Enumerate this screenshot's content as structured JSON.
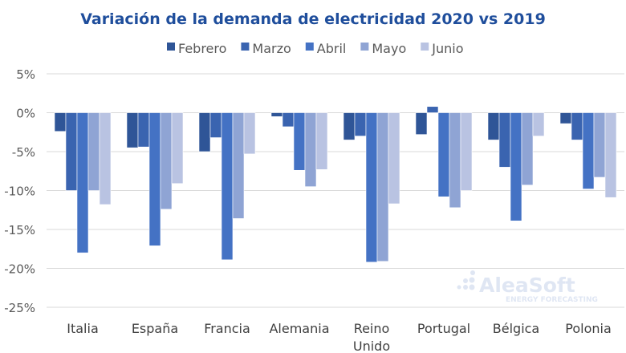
{
  "chart_data": {
    "type": "bar",
    "title": "Variación de la demanda de electricidad 2020 vs 2019",
    "categories": [
      "Italia",
      "España",
      "Francia",
      "Alemania",
      "Reino Unido",
      "Portugal",
      "Bélgica",
      "Polonia"
    ],
    "series": [
      {
        "name": "Febrero",
        "color": "#2f5597",
        "values": [
          -2.4,
          -4.5,
          -5.0,
          -0.5,
          -3.5,
          -2.8,
          -3.5,
          -1.4
        ]
      },
      {
        "name": "Marzo",
        "color": "#3a64b0",
        "values": [
          -10.0,
          -4.4,
          -3.2,
          -1.8,
          -3.0,
          0.8,
          -7.0,
          -3.5
        ]
      },
      {
        "name": "Abril",
        "color": "#4472c4",
        "values": [
          -18.0,
          -17.1,
          -18.9,
          -7.4,
          -19.2,
          -10.8,
          -13.9,
          -9.8
        ]
      },
      {
        "name": "Mayo",
        "color": "#8fa4d4",
        "values": [
          -10.0,
          -12.4,
          -13.6,
          -9.5,
          -19.1,
          -12.2,
          -9.3,
          -8.3
        ]
      },
      {
        "name": "Junio",
        "color": "#b9c3e2",
        "values": [
          -11.8,
          -9.1,
          -5.3,
          -7.3,
          -11.7,
          -10.0,
          -3.0,
          -10.9
        ]
      }
    ],
    "yticks": [
      "5%",
      "0%",
      "-5%",
      "-10%",
      "-15%",
      "-20%",
      "-25%"
    ],
    "ylim": [
      -25,
      5
    ],
    "yunit": "%",
    "grid": true,
    "legend": "top",
    "title_color": "#1f4e9c"
  },
  "watermark": {
    "brand": "AleaSoft",
    "tagline": "ENERGY FORECASTING"
  }
}
